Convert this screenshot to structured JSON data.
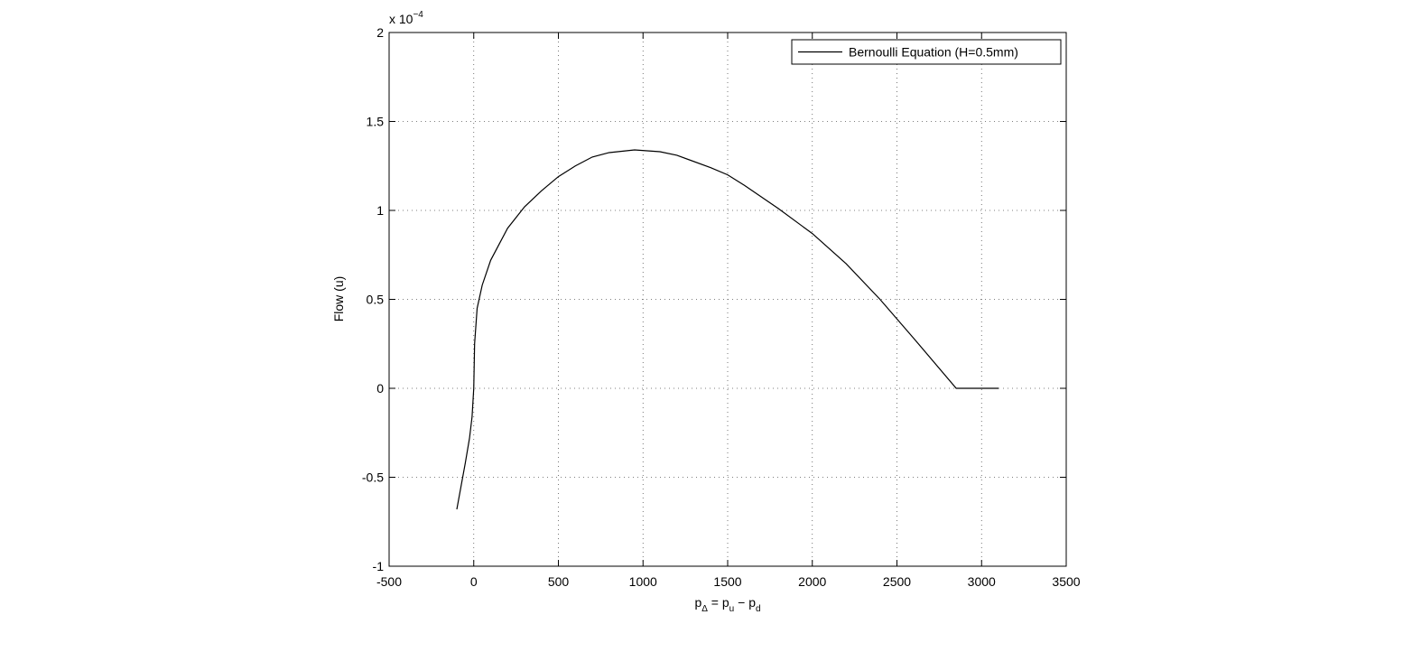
{
  "chart_data": {
    "type": "line",
    "y_label": "Flow (u)",
    "x_label_parts": [
      "p",
      "Δ",
      " = p",
      "u",
      " − p",
      "d"
    ],
    "y_multiplier": {
      "base": "x 10",
      "exponent": "−4"
    },
    "x": [
      -100,
      -75,
      -50,
      -25,
      -10,
      0,
      5,
      20,
      50,
      100,
      200,
      300,
      400,
      500,
      600,
      700,
      800,
      950,
      1100,
      1200,
      1400,
      1500,
      1600,
      1800,
      2000,
      2200,
      2400,
      2600,
      2850,
      3100
    ],
    "series": [
      {
        "name": "Bernoulli Equation (H=0.5mm)",
        "color": "#000000",
        "values": [
          -0.68,
          -0.55,
          -0.42,
          -0.28,
          -0.16,
          0,
          0.25,
          0.45,
          0.58,
          0.72,
          0.9,
          1.02,
          1.11,
          1.19,
          1.25,
          1.3,
          1.325,
          1.34,
          1.33,
          1.31,
          1.24,
          1.2,
          1.14,
          1.01,
          0.87,
          0.7,
          0.5,
          0.28,
          0,
          0
        ]
      }
    ],
    "xlim": [
      -500,
      3500
    ],
    "xticks": [
      -500,
      0,
      500,
      1000,
      1500,
      2000,
      2500,
      3000,
      3500
    ],
    "ylim": [
      -1,
      2
    ],
    "yticks": [
      -1,
      -0.5,
      0,
      0.5,
      1,
      1.5,
      2
    ],
    "grid": true,
    "legend": "upper right"
  }
}
